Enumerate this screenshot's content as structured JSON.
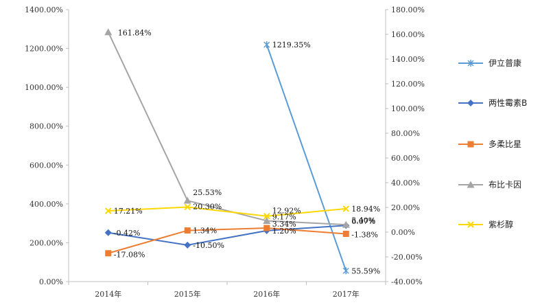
{
  "chart_data": {
    "type": "line",
    "categories": [
      "2014年",
      "2015年",
      "2016年",
      "2017年"
    ],
    "y_left": {
      "min": 0,
      "max": 1400,
      "step": 200,
      "tick_labels": [
        "0.00%",
        "200.00%",
        "400.00%",
        "600.00%",
        "800.00%",
        "1000.00%",
        "1200.00%",
        "1400.00%"
      ]
    },
    "y_right": {
      "min": -40,
      "max": 180,
      "step": 20,
      "tick_labels": [
        "-40.00%",
        "-20.00%",
        "0.00%",
        "20.00%",
        "40.00%",
        "60.00%",
        "80.00%",
        "100.00%",
        "120.00%",
        "140.00%",
        "160.00%",
        "180.00%"
      ]
    },
    "series": [
      {
        "name": "伊立普康",
        "color": "#5B9BD5",
        "marker": "star",
        "axis": "mixed",
        "points": [
          {
            "category_index": 2,
            "value": 1219.35,
            "axis": "left",
            "label": "1219.35%"
          },
          {
            "category_index": 3,
            "value": 55.59,
            "axis": "left",
            "label": "55.59%"
          }
        ]
      },
      {
        "name": "两性霉素B",
        "color": "#4472C4",
        "marker": "diamond",
        "axis": "right",
        "points": [
          {
            "category_index": 0,
            "value": -0.42,
            "label": "-0.42%"
          },
          {
            "category_index": 1,
            "value": -10.5,
            "label": "-10.50%"
          },
          {
            "category_index": 2,
            "value": 1.2,
            "label": "1.20%"
          },
          {
            "category_index": 3,
            "value": 5.4,
            "label": "5.40%"
          }
        ]
      },
      {
        "name": "多柔比星",
        "color": "#ED7D31",
        "marker": "square",
        "axis": "right",
        "points": [
          {
            "category_index": 0,
            "value": -17.08,
            "label": "-17.08%"
          },
          {
            "category_index": 1,
            "value": 1.34,
            "label": "1.34%"
          },
          {
            "category_index": 2,
            "value": 3.34,
            "label": "3.34%"
          },
          {
            "category_index": 3,
            "value": -1.38,
            "label": "-1.38%"
          }
        ]
      },
      {
        "name": "布比卡因",
        "color": "#A5A5A5",
        "marker": "triangle",
        "axis": "right",
        "points": [
          {
            "category_index": 0,
            "value": 161.84,
            "label": "161.84%"
          },
          {
            "category_index": 1,
            "value": 25.53,
            "label": "25.53%"
          },
          {
            "category_index": 2,
            "value": 9.17,
            "label": "9.17%"
          },
          {
            "category_index": 3,
            "value": 6.07,
            "label": "6.07%"
          }
        ]
      },
      {
        "name": "紫杉醇",
        "color": "#FFD700",
        "marker": "x",
        "axis": "right",
        "points": [
          {
            "category_index": 0,
            "value": 17.21,
            "label": "17.21%"
          },
          {
            "category_index": 1,
            "value": 20.3,
            "label": "20.30%"
          },
          {
            "category_index": 2,
            "value": 12.92,
            "label": "12.92%"
          },
          {
            "category_index": 3,
            "value": 18.94,
            "label": "18.94%"
          }
        ]
      }
    ],
    "legend_position": "right"
  }
}
